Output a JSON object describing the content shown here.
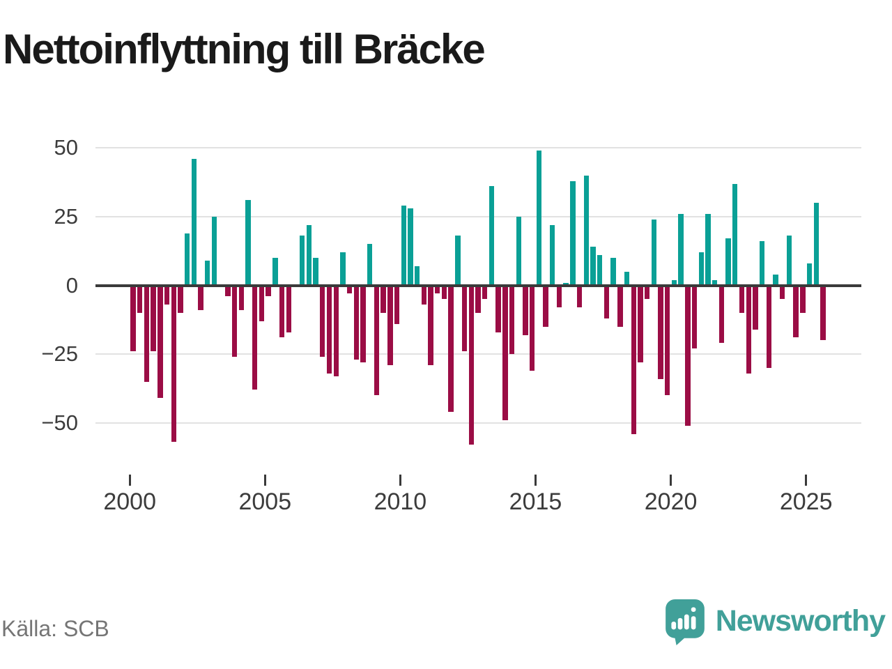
{
  "title": "Nettoinflyttning till Bräcke",
  "source": "Källa: SCB",
  "logo": {
    "text": "Newsworthy",
    "color": "#41a099"
  },
  "colors": {
    "positive": "#0aa096",
    "negative": "#9b0d45",
    "grid": "#e2e2e2",
    "axis": "#3a3a3a",
    "tick_text": "#3c3c3c",
    "source_text": "#757575"
  },
  "chart_data": {
    "type": "bar",
    "title": "Nettoinflyttning till Bräcke",
    "frequency": "quarterly",
    "start": "2000Q1",
    "end": "2025Q3",
    "values": [
      -24,
      -10,
      -35,
      -24,
      -41,
      -7,
      -57,
      -10,
      19,
      46,
      -9,
      9,
      25,
      0,
      -4,
      -26,
      -9,
      31,
      -38,
      -13,
      -4,
      10,
      -19,
      -17,
      0,
      18,
      22,
      10,
      -26,
      -32,
      -33,
      12,
      -3,
      -27,
      -28,
      15,
      -40,
      -10,
      -29,
      -14,
      29,
      28,
      7,
      -7,
      -29,
      -3,
      -5,
      -46,
      18,
      -24,
      -58,
      -10,
      -5,
      36,
      -17,
      -49,
      -25,
      25,
      -18,
      -31,
      49,
      -15,
      22,
      -8,
      1,
      38,
      -8,
      40,
      14,
      11,
      -12,
      10,
      -15,
      5,
      -54,
      -28,
      -5,
      24,
      -34,
      -40,
      2,
      26,
      -51,
      -23,
      12,
      26,
      2,
      -21,
      17,
      37,
      -10,
      -32,
      -16,
      16,
      -30,
      4,
      -5,
      18,
      -19,
      -10,
      8,
      30,
      -20
    ],
    "x_tick_labels": [
      "2000",
      "2005",
      "2010",
      "2015",
      "2020",
      "2025"
    ],
    "y_tick_labels": [
      "50",
      "25",
      "0",
      "−25",
      "−50"
    ],
    "y_tick_values": [
      50,
      25,
      0,
      -25,
      -50
    ],
    "ylim": [
      -62,
      55
    ],
    "grid": true,
    "legend": false
  }
}
